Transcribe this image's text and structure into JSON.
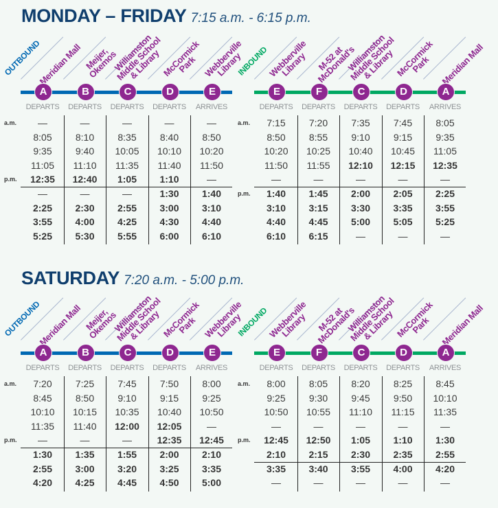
{
  "sections": [
    {
      "title": "MONDAY – FRIDAY",
      "hours": "7:15 a.m. - 6:15 p.m.",
      "tables": [
        {
          "direction": "OUTBOUND",
          "color": "#0068b3",
          "stops": [
            {
              "letter": "A",
              "name": [
                "Meridian Mall"
              ],
              "action": "DEPARTS"
            },
            {
              "letter": "B",
              "name": [
                "Meijer,",
                "Okemos"
              ],
              "action": "DEPARTS"
            },
            {
              "letter": "C",
              "name": [
                "Williamston",
                "Middle School",
                "& Library"
              ],
              "action": "DEPARTS"
            },
            {
              "letter": "D",
              "name": [
                "McCormick",
                "Park"
              ],
              "action": "DEPARTS"
            },
            {
              "letter": "E",
              "name": [
                "Webberville",
                "Library"
              ],
              "action": "ARRIVES"
            }
          ],
          "groups": [
            [
              {
                "period": "a.m.",
                "times": [
                  "—",
                  "—",
                  "—",
                  "—",
                  "—"
                ]
              },
              {
                "period": "",
                "times": [
                  "8:05",
                  "8:10",
                  "8:35",
                  "8:40",
                  "8:50"
                ]
              },
              {
                "period": "",
                "times": [
                  "9:35",
                  "9:40",
                  "10:05",
                  "10:10",
                  "10:20"
                ]
              },
              {
                "period": "",
                "times": [
                  "11:05",
                  "11:10",
                  "11:35",
                  "11:40",
                  "11:50"
                ]
              },
              {
                "period": "p.m.",
                "times": [
                  "12:35",
                  "12:40",
                  "1:05",
                  "1:10",
                  "—"
                ]
              }
            ],
            [
              {
                "period": "",
                "times": [
                  "—",
                  "—",
                  "—",
                  "1:30",
                  "1:40"
                ]
              },
              {
                "period": "",
                "times": [
                  "2:25",
                  "2:30",
                  "2:55",
                  "3:00",
                  "3:10"
                ]
              },
              {
                "period": "",
                "times": [
                  "3:55",
                  "4:00",
                  "4:25",
                  "4:30",
                  "4:40"
                ]
              },
              {
                "period": "",
                "times": [
                  "5:25",
                  "5:30",
                  "5:55",
                  "6:00",
                  "6:10"
                ]
              }
            ]
          ]
        },
        {
          "direction": "INBOUND",
          "color": "#00a862",
          "stops": [
            {
              "letter": "E",
              "name": [
                "Webberville",
                "Library"
              ],
              "action": "DEPARTS"
            },
            {
              "letter": "F",
              "name": [
                "M-52 at",
                "McDonald's"
              ],
              "action": "DEPARTS"
            },
            {
              "letter": "C",
              "name": [
                "Williamston",
                "Middle School",
                "& Library"
              ],
              "action": "DEPARTS"
            },
            {
              "letter": "D",
              "name": [
                "McCormick",
                "Park"
              ],
              "action": "DEPARTS"
            },
            {
              "letter": "A",
              "name": [
                "Meridian Mall"
              ],
              "action": "ARRIVES"
            }
          ],
          "groups": [
            [
              {
                "period": "a.m.",
                "times": [
                  "7:15",
                  "7:20",
                  "7:35",
                  "7:45",
                  "8:05"
                ]
              },
              {
                "period": "",
                "times": [
                  "8:50",
                  "8:55",
                  "9:10",
                  "9:15",
                  "9:35"
                ]
              },
              {
                "period": "",
                "times": [
                  "10:20",
                  "10:25",
                  "10:40",
                  "10:45",
                  "11:05"
                ]
              },
              {
                "period": "",
                "times": [
                  "11:50",
                  "11:55",
                  "12:10",
                  "12:15",
                  "12:35"
                ]
              },
              {
                "period": "",
                "times": [
                  "—",
                  "—",
                  "—",
                  "—",
                  "—"
                ]
              }
            ],
            [
              {
                "period": "p.m.",
                "times": [
                  "1:40",
                  "1:45",
                  "2:00",
                  "2:05",
                  "2:25"
                ]
              },
              {
                "period": "",
                "times": [
                  "3:10",
                  "3:15",
                  "3:30",
                  "3:35",
                  "3:55"
                ]
              },
              {
                "period": "",
                "times": [
                  "4:40",
                  "4:45",
                  "5:00",
                  "5:05",
                  "5:25"
                ]
              },
              {
                "period": "",
                "times": [
                  "6:10",
                  "6:15",
                  "—",
                  "—",
                  "—"
                ]
              }
            ]
          ]
        }
      ]
    },
    {
      "title": "SATURDAY",
      "hours": "7:20 a.m. - 5:00 p.m.",
      "tables": [
        {
          "direction": "OUTBOUND",
          "color": "#0068b3",
          "stops": [
            {
              "letter": "A",
              "name": [
                "Meridian Mall"
              ],
              "action": "DEPARTS"
            },
            {
              "letter": "B",
              "name": [
                "Meijer,",
                "Okemos"
              ],
              "action": "DEPARTS"
            },
            {
              "letter": "C",
              "name": [
                "Williamston",
                "Middle School",
                "& Library"
              ],
              "action": "DEPARTS"
            },
            {
              "letter": "D",
              "name": [
                "McCormick",
                "Park"
              ],
              "action": "DEPARTS"
            },
            {
              "letter": "E",
              "name": [
                "Webberville",
                "Library"
              ],
              "action": "ARRIVES"
            }
          ],
          "groups": [
            [
              {
                "period": "a.m.",
                "times": [
                  "7:20",
                  "7:25",
                  "7:45",
                  "7:50",
                  "8:00"
                ]
              },
              {
                "period": "",
                "times": [
                  "8:45",
                  "8:50",
                  "9:10",
                  "9:15",
                  "9:25"
                ]
              },
              {
                "period": "",
                "times": [
                  "10:10",
                  "10:15",
                  "10:35",
                  "10:40",
                  "10:50"
                ]
              },
              {
                "period": "",
                "times": [
                  "11:35",
                  "11:40",
                  "12:00",
                  "12:05",
                  "—"
                ]
              },
              {
                "period": "p.m.",
                "times": [
                  "—",
                  "—",
                  "—",
                  "12:35",
                  "12:45"
                ]
              }
            ],
            [
              {
                "period": "",
                "times": [
                  "1:30",
                  "1:35",
                  "1:55",
                  "2:00",
                  "2:10"
                ]
              },
              {
                "period": "",
                "times": [
                  "2:55",
                  "3:00",
                  "3:20",
                  "3:25",
                  "3:35"
                ]
              },
              {
                "period": "",
                "times": [
                  "4:20",
                  "4:25",
                  "4:45",
                  "4:50",
                  "5:00"
                ]
              }
            ]
          ]
        },
        {
          "direction": "INBOUND",
          "color": "#00a862",
          "stops": [
            {
              "letter": "E",
              "name": [
                "Webberville",
                "Library"
              ],
              "action": "DEPARTS"
            },
            {
              "letter": "F",
              "name": [
                "M-52 at",
                "McDonald's"
              ],
              "action": "DEPARTS"
            },
            {
              "letter": "C",
              "name": [
                "Williamston",
                "Middle School",
                "& Library"
              ],
              "action": "DEPARTS"
            },
            {
              "letter": "D",
              "name": [
                "McCormick",
                "Park"
              ],
              "action": "DEPARTS"
            },
            {
              "letter": "A",
              "name": [
                "Meridian Mall"
              ],
              "action": "ARRIVES"
            }
          ],
          "groups": [
            [
              {
                "period": "a.m.",
                "times": [
                  "8:00",
                  "8:05",
                  "8:20",
                  "8:25",
                  "8:45"
                ]
              },
              {
                "period": "",
                "times": [
                  "9:25",
                  "9:30",
                  "9:45",
                  "9:50",
                  "10:10"
                ]
              },
              {
                "period": "",
                "times": [
                  "10:50",
                  "10:55",
                  "11:10",
                  "11:15",
                  "11:35"
                ]
              },
              {
                "period": "",
                "times": [
                  "—",
                  "—",
                  "—",
                  "—",
                  "—"
                ]
              },
              {
                "period": "p.m.",
                "times": [
                  "12:45",
                  "12:50",
                  "1:05",
                  "1:10",
                  "1:30"
                ]
              },
              {
                "period": "",
                "times": [
                  "2:10",
                  "2:15",
                  "2:30",
                  "2:35",
                  "2:55"
                ]
              }
            ],
            [
              {
                "period": "",
                "times": [
                  "3:35",
                  "3:40",
                  "3:55",
                  "4:00",
                  "4:20"
                ]
              },
              {
                "period": "",
                "times": [
                  "—",
                  "—",
                  "—",
                  "—",
                  "—"
                ]
              }
            ]
          ]
        }
      ]
    }
  ]
}
